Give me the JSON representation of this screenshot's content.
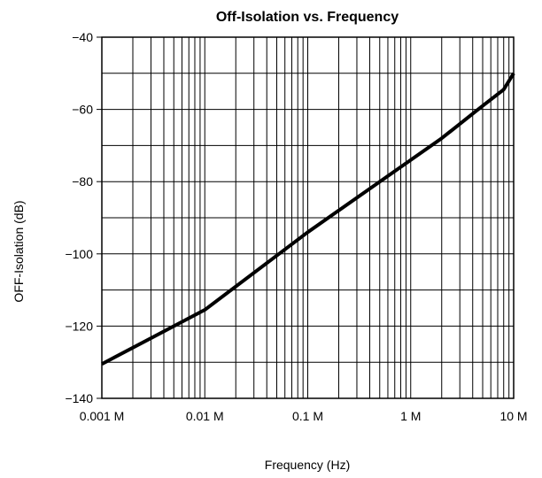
{
  "chart_data": {
    "type": "line",
    "title": "Off-Isolation vs. Frequency",
    "xlabel": "Frequency (Hz)",
    "ylabel": "OFF-Isolation (dB)",
    "x_scale": "log",
    "xlim": [
      0.001,
      10
    ],
    "ylim": [
      -140,
      -40
    ],
    "x_ticks": [
      {
        "value": 0.001,
        "label": "0.001 M"
      },
      {
        "value": 0.01,
        "label": "0.01 M"
      },
      {
        "value": 0.1,
        "label": "0.1 M"
      },
      {
        "value": 1,
        "label": "1 M"
      },
      {
        "value": 10,
        "label": "10 M"
      }
    ],
    "y_ticks": [
      {
        "value": -40,
        "label": "−40"
      },
      {
        "value": -60,
        "label": "−60"
      },
      {
        "value": -80,
        "label": "−80"
      },
      {
        "value": -100,
        "label": "−100"
      },
      {
        "value": -120,
        "label": "−120"
      },
      {
        "value": -140,
        "label": "−140"
      }
    ],
    "grid": true,
    "series": [
      {
        "color": "#000000",
        "x": [
          0.001,
          0.01,
          0.1,
          1,
          2,
          5,
          8,
          10
        ],
        "y": [
          -130.5,
          -115.5,
          -94,
          -74,
          -68,
          -59,
          -54.5,
          -50
        ]
      }
    ]
  }
}
